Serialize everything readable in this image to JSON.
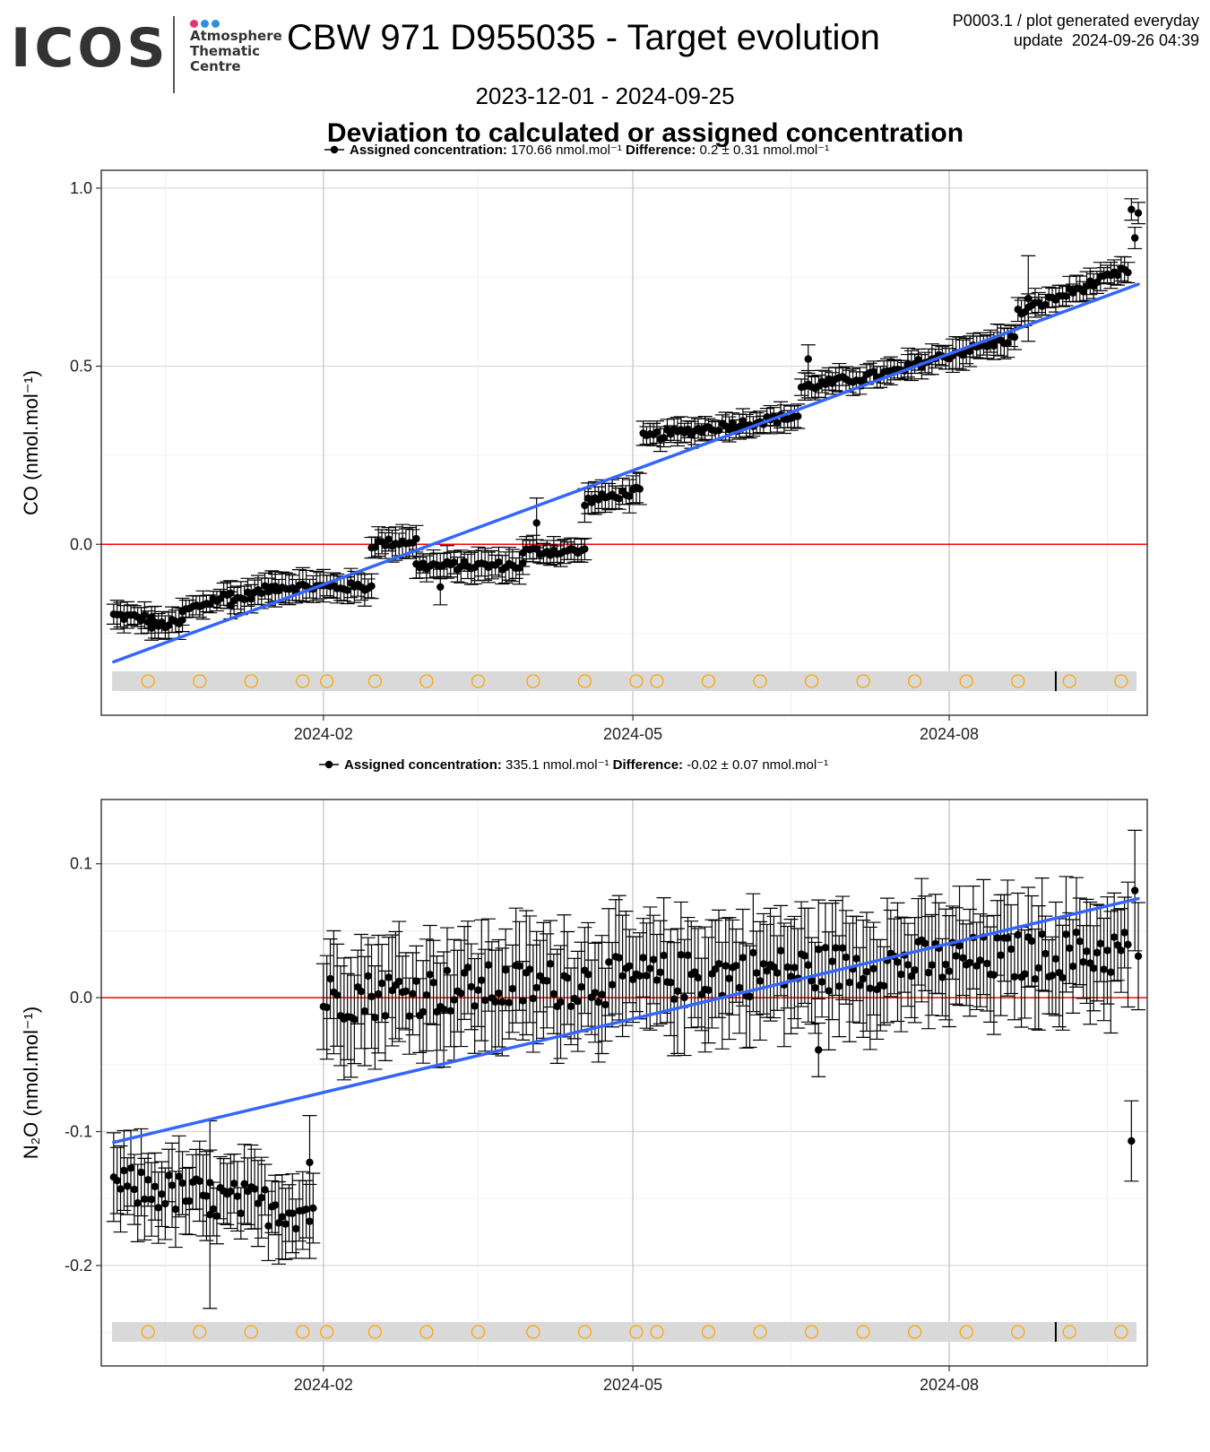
{
  "header": {
    "logo_text": "ICOS",
    "logo_sub": [
      "Atmosphere",
      "Thematic",
      "Centre"
    ],
    "logo_dot_colors": [
      "#e8336e",
      "#2f8fdc",
      "#2f8fdc"
    ],
    "title": "CBW 971 D955035 - Target evolution",
    "plot_id": "P0003.1 / plot generated everyday",
    "update": "update  2024-09-26 04:39",
    "date_range": "2023-12-01 - 2024-09-25",
    "subtitle": "Deviation to calculated or assigned concentration"
  },
  "chart_data": [
    {
      "type": "scatter",
      "ylabel": "CO (nmol.mol⁻¹)",
      "legend": {
        "bold1": "Assigned concentration:",
        "value1": "170.66 nmol.mol⁻¹",
        "bold2": "Difference:",
        "value2": "0.2 ± 0.31 nmol.mol⁻¹"
      },
      "x_range": [
        "2023-12-01",
        "2024-09-25"
      ],
      "ylim": [
        -0.48,
        1.05
      ],
      "yticks": [
        0.0,
        0.5,
        1.0
      ],
      "ytick_labels": [
        "0.0",
        "0.5",
        "1.0"
      ],
      "xticks": [
        "2024-02-01",
        "2024-05-01",
        "2024-08-01"
      ],
      "xtick_labels": [
        "2024-02",
        "2024-05",
        "2024-08"
      ],
      "reference_line": 0.0,
      "trend": {
        "start": [
          "2023-12-02",
          -0.33
        ],
        "end": [
          "2024-09-25",
          0.73
        ]
      },
      "colors": {
        "points": "#000000",
        "trend": "#3366ff",
        "reference": "#ff0000",
        "band": "#d9d9d9",
        "markers": "#ffa500"
      },
      "segments": [
        {
          "t0": "2023-12-02",
          "t1": "2023-12-13",
          "y0": -0.2,
          "y1": -0.21,
          "err": 0.03
        },
        {
          "t0": "2023-12-13",
          "t1": "2023-12-22",
          "y0": -0.23,
          "y1": -0.22,
          "err": 0.035
        },
        {
          "t0": "2023-12-22",
          "t1": "2024-01-05",
          "y0": -0.19,
          "y1": -0.14,
          "err": 0.03
        },
        {
          "t0": "2024-01-05",
          "t1": "2024-01-18",
          "y0": -0.16,
          "y1": -0.12,
          "err": 0.035
        },
        {
          "t0": "2024-01-18",
          "t1": "2024-02-15",
          "y0": -0.12,
          "y1": -0.12,
          "err": 0.035
        },
        {
          "t0": "2024-02-15",
          "t1": "2024-02-28",
          "y0": 0.0,
          "y1": 0.01,
          "err": 0.035
        },
        {
          "t0": "2024-02-28",
          "t1": "2024-03-30",
          "y0": -0.06,
          "y1": -0.06,
          "err": 0.035
        },
        {
          "t0": "2024-03-30",
          "t1": "2024-04-17",
          "y0": -0.02,
          "y1": -0.02,
          "err": 0.03
        },
        {
          "t0": "2024-04-17",
          "t1": "2024-05-03",
          "y0": 0.12,
          "y1": 0.15,
          "err": 0.035
        },
        {
          "t0": "2024-05-04",
          "t1": "2024-06-18",
          "y0": 0.3,
          "y1": 0.36,
          "err": 0.03
        },
        {
          "t0": "2024-06-19",
          "t1": "2024-07-20",
          "y0": 0.44,
          "y1": 0.49,
          "err": 0.03
        },
        {
          "t0": "2024-07-20",
          "t1": "2024-08-20",
          "y0": 0.5,
          "y1": 0.58,
          "err": 0.035
        },
        {
          "t0": "2024-08-21",
          "t1": "2024-09-22",
          "y0": 0.65,
          "y1": 0.77,
          "err": 0.03
        }
      ],
      "outliers": [
        {
          "t": "2024-04-03",
          "y": 0.06,
          "err": 0.07
        },
        {
          "t": "2024-03-06",
          "y": -0.12,
          "err": 0.05
        },
        {
          "t": "2024-06-21",
          "y": 0.52,
          "err": 0.04
        },
        {
          "t": "2024-08-24",
          "y": 0.69,
          "err": 0.12
        },
        {
          "t": "2024-09-23",
          "y": 0.94,
          "err": 0.03
        },
        {
          "t": "2024-09-24",
          "y": 0.86,
          "err": 0.03
        },
        {
          "t": "2024-09-25",
          "y": 0.93,
          "err": 0.03
        }
      ],
      "event_markers": [
        "2023-12-12",
        "2023-12-27",
        "2024-01-11",
        "2024-01-26",
        "2024-02-02",
        "2024-02-16",
        "2024-03-02",
        "2024-03-17",
        "2024-04-02",
        "2024-04-17",
        "2024-05-02",
        "2024-05-08",
        "2024-05-23",
        "2024-06-07",
        "2024-06-22",
        "2024-07-07",
        "2024-07-22",
        "2024-08-06",
        "2024-08-21",
        "2024-09-05",
        "2024-09-20"
      ],
      "band_tick": "2024-09-01"
    },
    {
      "type": "scatter",
      "ylabel": "N₂O (nmol.mol⁻¹)",
      "legend": {
        "bold1": "Assigned concentration:",
        "value1": "335.1 nmol.mol⁻¹",
        "bold2": "Difference:",
        "value2": "-0.02 ± 0.07 nmol.mol⁻¹"
      },
      "x_range": [
        "2023-12-01",
        "2024-09-25"
      ],
      "ylim": [
        -0.275,
        0.148
      ],
      "yticks": [
        -0.2,
        -0.1,
        0.0,
        0.1
      ],
      "ytick_labels": [
        "-0.2",
        "-0.1",
        "0.0",
        "0.1"
      ],
      "xticks": [
        "2024-02-01",
        "2024-05-01",
        "2024-08-01"
      ],
      "xtick_labels": [
        "2024-02",
        "2024-05",
        "2024-08"
      ],
      "reference_line": 0.0,
      "trend": {
        "start": [
          "2023-12-02",
          -0.108
        ],
        "end": [
          "2024-09-25",
          0.074
        ]
      },
      "colors": {
        "points": "#000000",
        "trend": "#3366ff",
        "reference": "#ff0000",
        "band": "#d9d9d9",
        "markers": "#ffa500"
      },
      "segments": [
        {
          "t0": "2023-12-02",
          "t1": "2024-01-29",
          "y0": -0.14,
          "y1": -0.16,
          "err": 0.025,
          "jitter": 0.015
        },
        {
          "t0": "2024-02-01",
          "t1": "2024-09-22",
          "y0": 0.0,
          "y1": 0.035,
          "err": 0.035,
          "jitter": 0.018
        }
      ],
      "outliers": [
        {
          "t": "2024-06-24",
          "y": -0.039,
          "err": 0.02
        },
        {
          "t": "2024-09-23",
          "y": -0.107,
          "err": 0.03
        },
        {
          "t": "2024-09-24",
          "y": 0.08,
          "err": 0.045
        },
        {
          "t": "2024-09-25",
          "y": 0.031,
          "err": 0.04
        },
        {
          "t": "2023-12-30",
          "y": -0.162,
          "err": 0.07
        },
        {
          "t": "2024-01-28",
          "y": -0.123,
          "err": 0.035
        }
      ],
      "event_markers": [
        "2023-12-12",
        "2023-12-27",
        "2024-01-11",
        "2024-01-26",
        "2024-02-02",
        "2024-02-16",
        "2024-03-02",
        "2024-03-17",
        "2024-04-02",
        "2024-04-17",
        "2024-05-02",
        "2024-05-08",
        "2024-05-23",
        "2024-06-07",
        "2024-06-22",
        "2024-07-07",
        "2024-07-22",
        "2024-08-06",
        "2024-08-21",
        "2024-09-05",
        "2024-09-20"
      ],
      "band_tick": "2024-09-01"
    }
  ]
}
